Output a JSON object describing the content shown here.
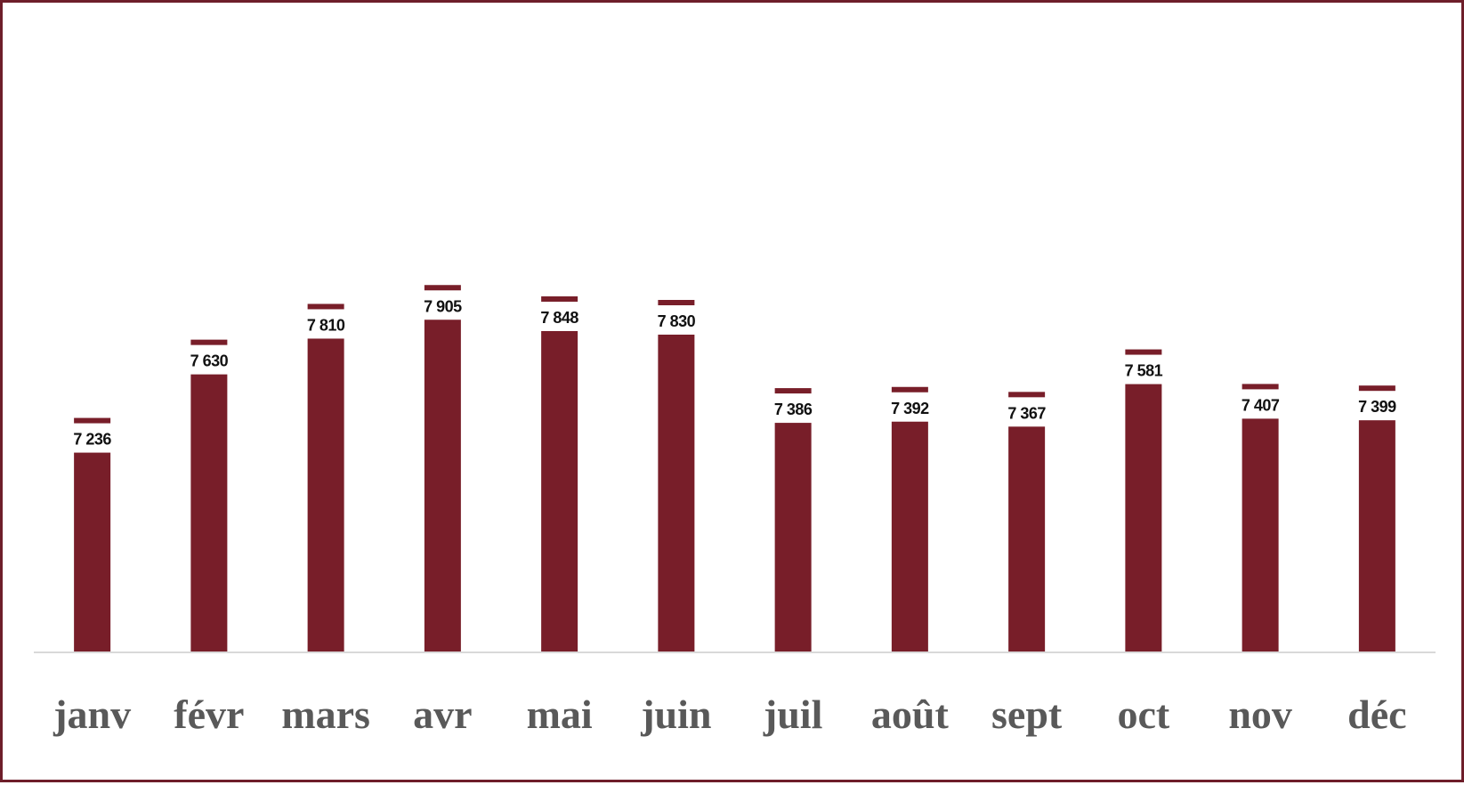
{
  "chart_data": {
    "type": "bar",
    "title": "",
    "xlabel": "",
    "ylabel": "",
    "categories": [
      "janv",
      "févr",
      "mars",
      "avr",
      "mai",
      "juin",
      "juil",
      "août",
      "sept",
      "oct",
      "nov",
      "déc"
    ],
    "values": [
      7236,
      7630,
      7810,
      7905,
      7848,
      7830,
      7386,
      7392,
      7367,
      7581,
      7407,
      7399
    ],
    "labels": [
      "7 236",
      "7 630",
      "7 810",
      "7 905",
      "7 848",
      "7 830",
      "7 386",
      "7 392",
      "7 367",
      "7 581",
      "7 407",
      "7 399"
    ],
    "ylim": [
      7000,
      8000
    ],
    "grid": false,
    "legend": "none",
    "colors": {
      "bar": "#781e29",
      "frame": "#6e1e2a",
      "axis": "#d9d9d9",
      "tick_text": "#595959",
      "label_text": "#111111"
    }
  }
}
